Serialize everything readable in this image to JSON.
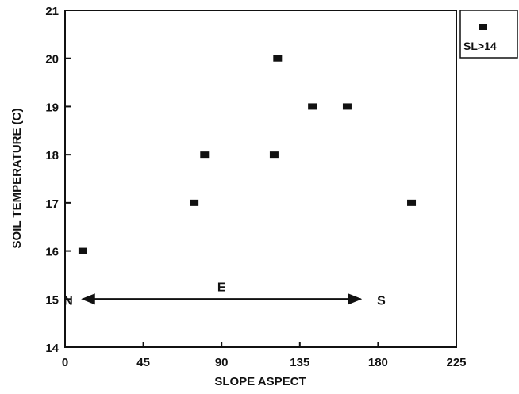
{
  "chart_data": {
    "type": "scatter",
    "xlabel": "SLOPE ASPECT",
    "ylabel": "SOIL TEMPERATURE (C)",
    "xlim": [
      0,
      225
    ],
    "ylim": [
      14,
      21
    ],
    "xticks": [
      0,
      45,
      90,
      135,
      180,
      225
    ],
    "yticks": [
      14,
      15,
      16,
      17,
      18,
      19,
      20,
      21
    ],
    "grid": false,
    "legend_position": "outside top-right",
    "series": [
      {
        "name": "SL>14",
        "marker": "square",
        "color": "#111111",
        "points": [
          {
            "x": 10,
            "y": 16
          },
          {
            "x": 74,
            "y": 17
          },
          {
            "x": 80,
            "y": 18
          },
          {
            "x": 120,
            "y": 18
          },
          {
            "x": 122,
            "y": 20
          },
          {
            "x": 142,
            "y": 19
          },
          {
            "x": 162,
            "y": 19
          },
          {
            "x": 199,
            "y": 17
          }
        ]
      }
    ],
    "annotations": {
      "arrow": {
        "from_x": 10,
        "to_x": 170,
        "y": 15
      },
      "left_label": "N",
      "middle_label": "E",
      "right_label": "S"
    }
  }
}
